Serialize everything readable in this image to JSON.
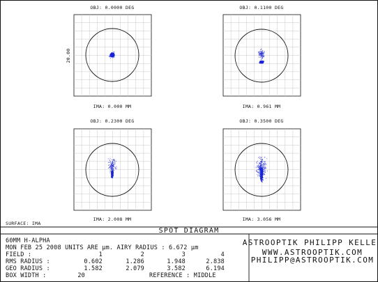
{
  "panels": [
    {
      "obj": "OBJ: 0.0000 DEG",
      "ima": "IMA: 0.000 MM"
    },
    {
      "obj": "OBJ: 0.1100 DEG",
      "ima": "IMA: 0.961 MM"
    },
    {
      "obj": "OBJ: 0.2300 DEG",
      "ima": "IMA: 2.008 MM"
    },
    {
      "obj": "OBJ: 0.3500 DEG",
      "ima": "IMA: 3.056 MM"
    }
  ],
  "scale_label": "20.00",
  "surface": "SURFACE: IMA",
  "title": "SPOT DIAGRAM",
  "footer": {
    "line1": "60MM H-ALPHA",
    "line2": "MON FEB 25 2008  UNITS ARE µm.  AIRY RADIUS : 6.672 µm",
    "rows": [
      {
        "label": "FIELD      :",
        "values": [
          "1",
          "2",
          "3",
          "4"
        ]
      },
      {
        "label": "RMS RADIUS :",
        "values": [
          "0.602",
          "1.286",
          "1.948",
          "2.838"
        ]
      },
      {
        "label": "GEO RADIUS :",
        "values": [
          "1.582",
          "2.079",
          "3.582",
          "6.194"
        ]
      }
    ],
    "box_width_label": "BOX WIDTH  :",
    "box_width_value": "20",
    "reference": "REFERENCE  : MIDDLE"
  },
  "company": {
    "name": "ASTROOPTIK PHILIPP KELLER",
    "web": "WWW.ASTROOPTIK.COM",
    "email": "PHILIPP@ASTROOPTIK.COM"
  },
  "colors": {
    "spot": "#1a24d6",
    "ink": "#111111",
    "grid": "#c8c8c8"
  }
}
